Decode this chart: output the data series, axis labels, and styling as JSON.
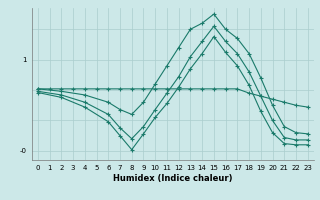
{
  "xlabel": "Humidex (Indice chaleur)",
  "bg_color": "#cce8e8",
  "grid_color": "#aacece",
  "line_color": "#1a7a6a",
  "xlim": [
    -0.5,
    23.5
  ],
  "ylim": [
    -0.65,
    1.85
  ],
  "series1_x": [
    0,
    1,
    2,
    3,
    4,
    5,
    6,
    7,
    8,
    9,
    10,
    11,
    12,
    13,
    14,
    15,
    16,
    17,
    18,
    19,
    20,
    21,
    22,
    23
  ],
  "series1_y": [
    0.52,
    0.52,
    0.52,
    0.52,
    0.52,
    0.52,
    0.52,
    0.52,
    0.52,
    0.52,
    0.52,
    0.52,
    0.52,
    0.52,
    0.52,
    0.52,
    0.52,
    0.52,
    0.45,
    0.4,
    0.35,
    0.3,
    0.25,
    0.22
  ],
  "series2_x": [
    0,
    2,
    4,
    6,
    7,
    8,
    9,
    10,
    11,
    12,
    13,
    14,
    15,
    16,
    17,
    18,
    19,
    20,
    21,
    22,
    23
  ],
  "series2_y": [
    0.52,
    0.48,
    0.42,
    0.3,
    0.18,
    0.1,
    0.3,
    0.6,
    0.9,
    1.2,
    1.5,
    1.6,
    1.75,
    1.5,
    1.35,
    1.1,
    0.7,
    0.25,
    -0.1,
    -0.2,
    -0.22
  ],
  "series3_x": [
    0,
    2,
    4,
    6,
    7,
    8,
    9,
    10,
    11,
    12,
    13,
    14,
    15,
    16,
    17,
    18,
    19,
    20,
    21,
    22,
    23
  ],
  "series3_y": [
    0.48,
    0.42,
    0.3,
    0.1,
    -0.12,
    -0.3,
    -0.1,
    0.18,
    0.45,
    0.72,
    1.05,
    1.3,
    1.55,
    1.3,
    1.1,
    0.8,
    0.4,
    0.0,
    -0.28,
    -0.32,
    -0.32
  ],
  "series4_x": [
    0,
    2,
    4,
    6,
    7,
    8,
    9,
    10,
    11,
    12,
    13,
    14,
    15,
    16,
    17,
    18,
    19,
    20,
    21,
    22,
    23
  ],
  "series4_y": [
    0.46,
    0.38,
    0.22,
    -0.02,
    -0.25,
    -0.48,
    -0.22,
    0.05,
    0.28,
    0.55,
    0.85,
    1.1,
    1.38,
    1.12,
    0.9,
    0.58,
    0.15,
    -0.2,
    -0.38,
    -0.4,
    -0.4
  ],
  "yticks": [
    -0.5,
    0.0,
    0.5,
    1.0,
    1.5
  ],
  "ytick_labels": [
    "-0",
    "",
    "",
    "1",
    ""
  ],
  "xticks": [
    0,
    1,
    2,
    3,
    4,
    5,
    6,
    7,
    8,
    9,
    10,
    11,
    12,
    13,
    14,
    15,
    16,
    17,
    18,
    19,
    20,
    21,
    22,
    23
  ]
}
